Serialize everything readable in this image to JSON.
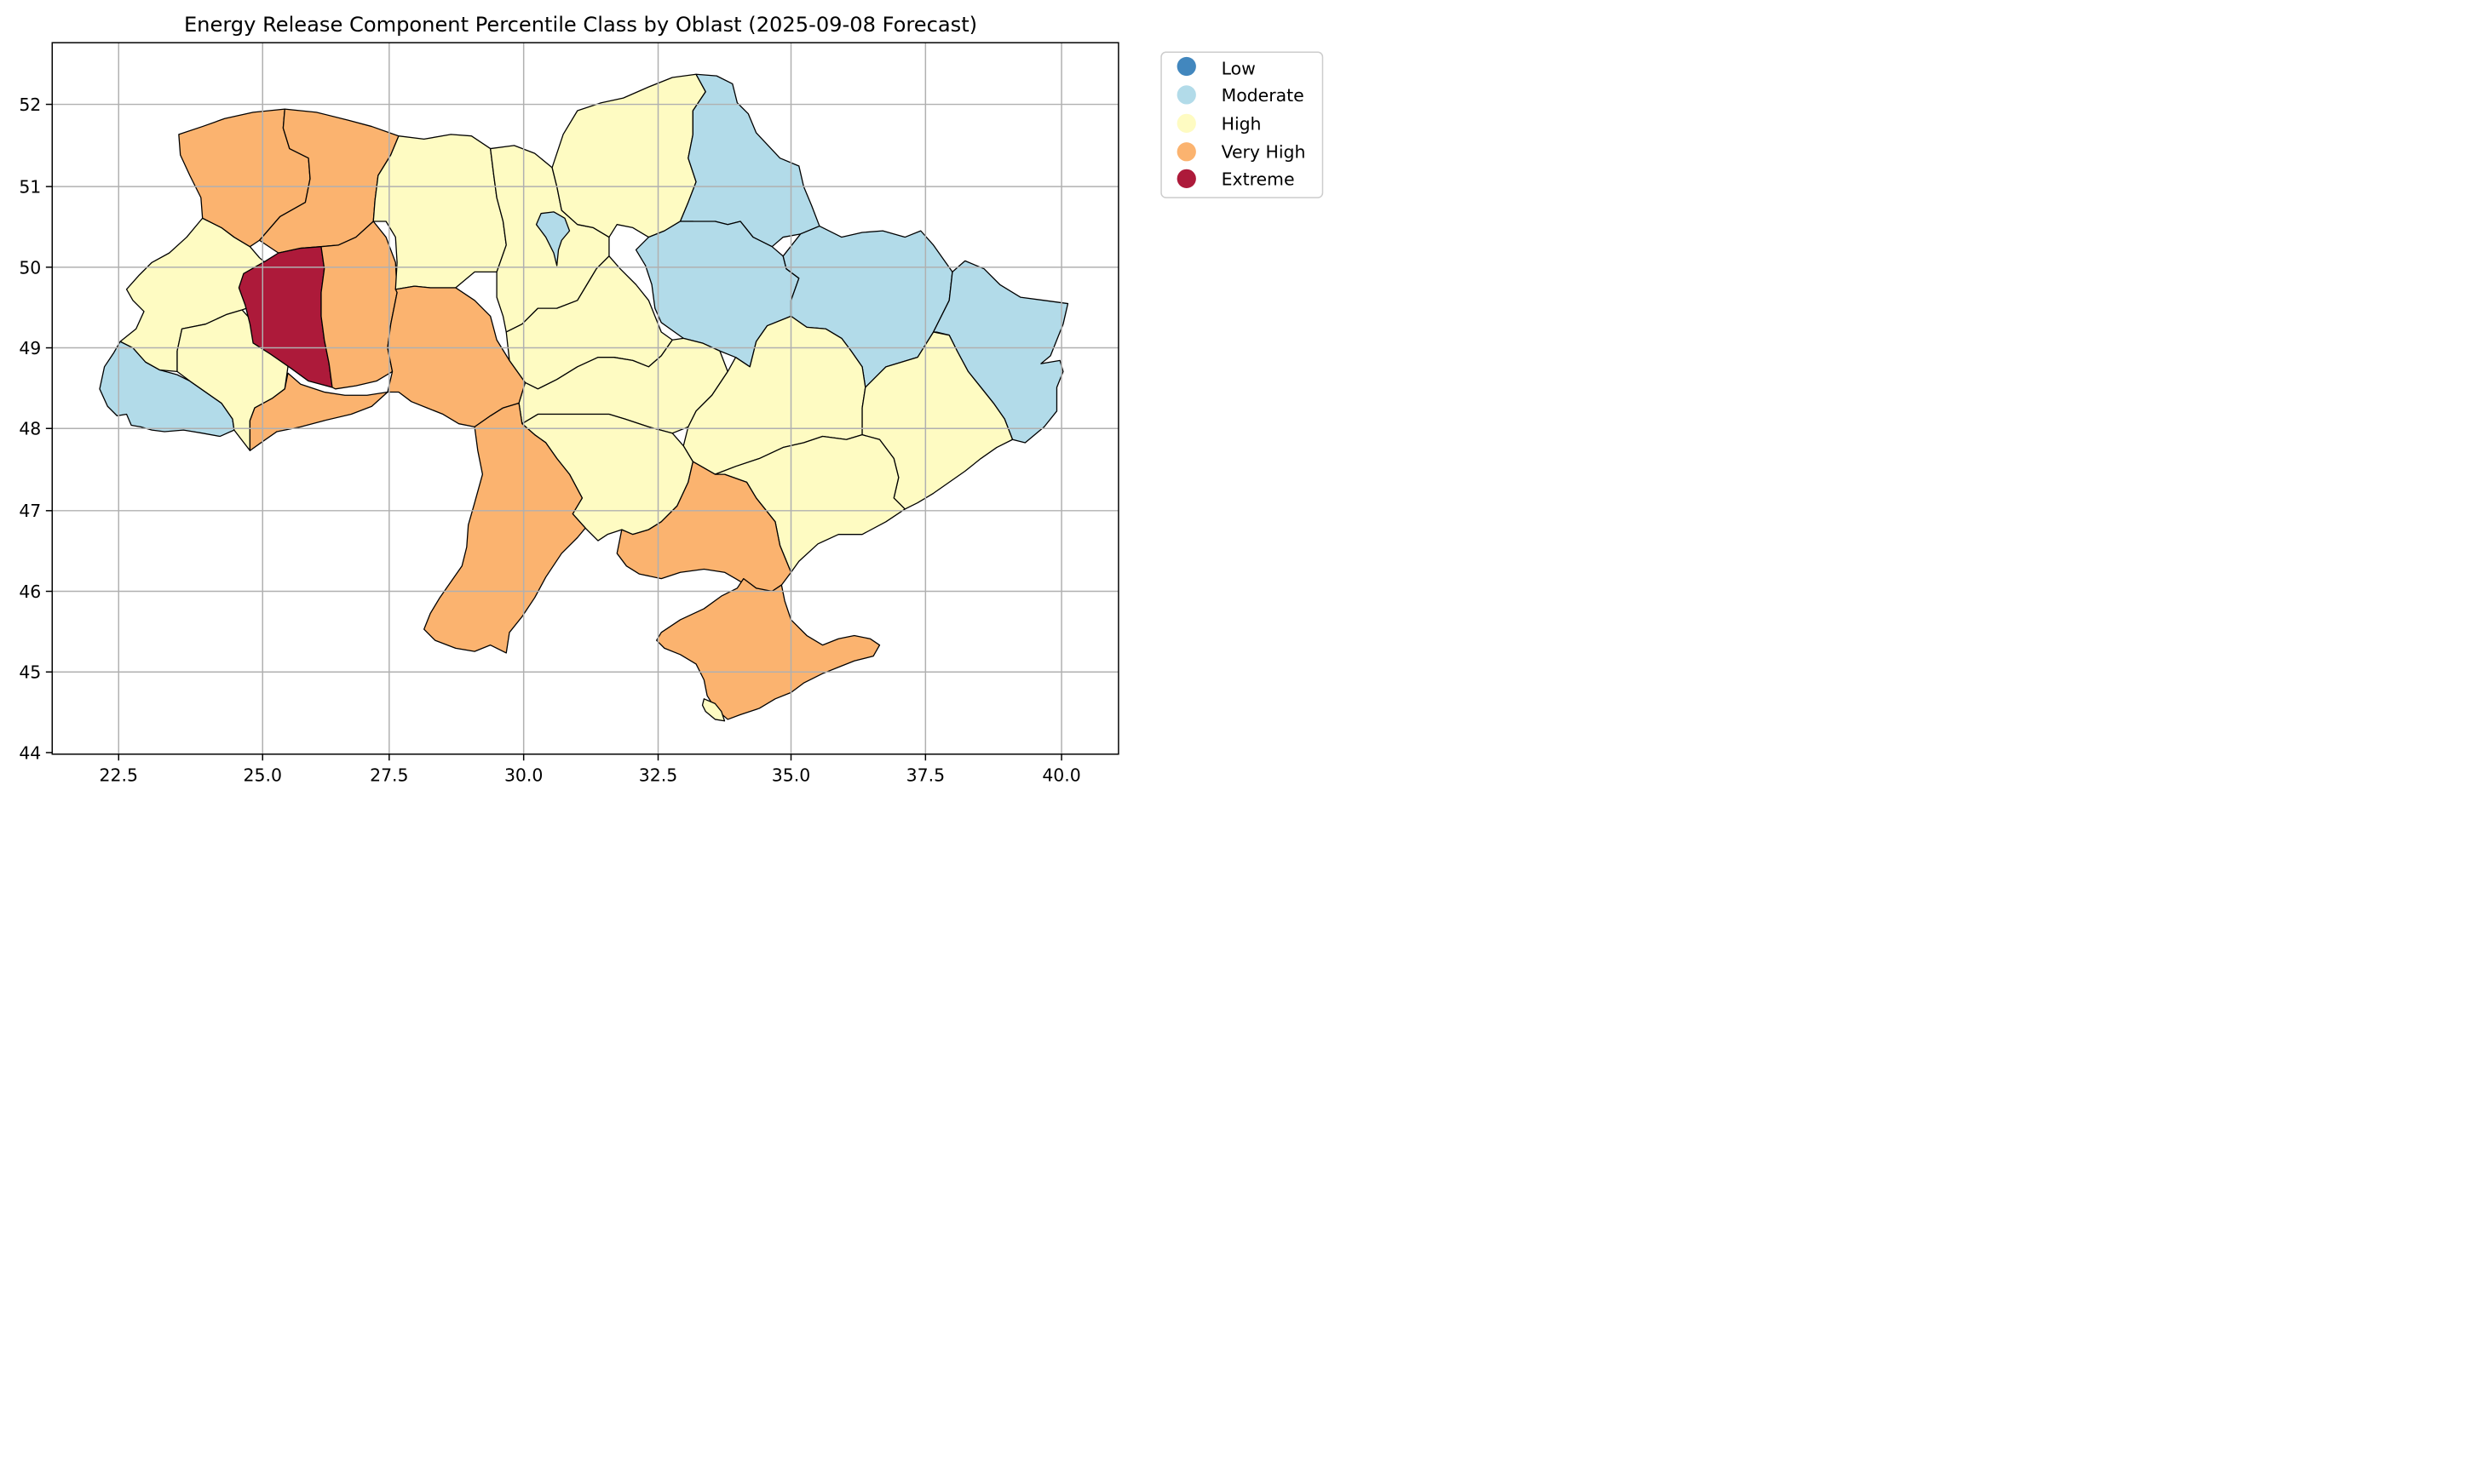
{
  "chart_data": {
    "type": "choropleth",
    "title": "Energy Release Component Percentile Class by Oblast (2025-09-08 Forecast)",
    "xlabel": "",
    "ylabel": "",
    "xlim": [
      21.3,
      41.1
    ],
    "ylim": [
      44.0,
      52.8
    ],
    "x_ticks": [
      "22.5",
      "25.0",
      "27.5",
      "30.0",
      "32.5",
      "35.0",
      "37.5",
      "40.0"
    ],
    "y_ticks": [
      "44",
      "45",
      "46",
      "47",
      "48",
      "49",
      "50",
      "51",
      "52"
    ],
    "grid": true,
    "legend_position": "upper-right-outside",
    "legend": [
      {
        "label": "Low",
        "color": "#4287be"
      },
      {
        "label": "Moderate",
        "color": "#b2dbe9"
      },
      {
        "label": "High",
        "color": "#fefbc2"
      },
      {
        "label": "Very High",
        "color": "#fbb36f"
      },
      {
        "label": "Extreme",
        "color": "#ad1a3a"
      }
    ],
    "regions": [
      {
        "name": "Zakarpattia",
        "class": "Moderate"
      },
      {
        "name": "Lviv",
        "class": "High"
      },
      {
        "name": "Ivano-Frankivsk",
        "class": "High"
      },
      {
        "name": "Volyn",
        "class": "Very High"
      },
      {
        "name": "Rivne",
        "class": "Very High"
      },
      {
        "name": "Ternopil",
        "class": "Extreme"
      },
      {
        "name": "Khmelnytskyi",
        "class": "Very High"
      },
      {
        "name": "Chernivtsi",
        "class": "Very High"
      },
      {
        "name": "Zhytomyr",
        "class": "High"
      },
      {
        "name": "Vinnytsia",
        "class": "Very High"
      },
      {
        "name": "Kyiv",
        "class": "High"
      },
      {
        "name": "Kyiv City",
        "class": "Moderate"
      },
      {
        "name": "Chernihiv",
        "class": "High"
      },
      {
        "name": "Sumy",
        "class": "Moderate"
      },
      {
        "name": "Poltava",
        "class": "Moderate"
      },
      {
        "name": "Kharkiv",
        "class": "Moderate"
      },
      {
        "name": "Luhansk",
        "class": "Moderate"
      },
      {
        "name": "Cherkasy",
        "class": "High"
      },
      {
        "name": "Kirovohrad",
        "class": "High"
      },
      {
        "name": "Dnipropetrovsk",
        "class": "High"
      },
      {
        "name": "Donetsk",
        "class": "High"
      },
      {
        "name": "Zaporizhzhia",
        "class": "High"
      },
      {
        "name": "Mykolaiv",
        "class": "High"
      },
      {
        "name": "Odesa",
        "class": "Very High"
      },
      {
        "name": "Kherson",
        "class": "Very High"
      },
      {
        "name": "Crimea",
        "class": "Very High"
      },
      {
        "name": "Sevastopol",
        "class": "High"
      }
    ]
  }
}
